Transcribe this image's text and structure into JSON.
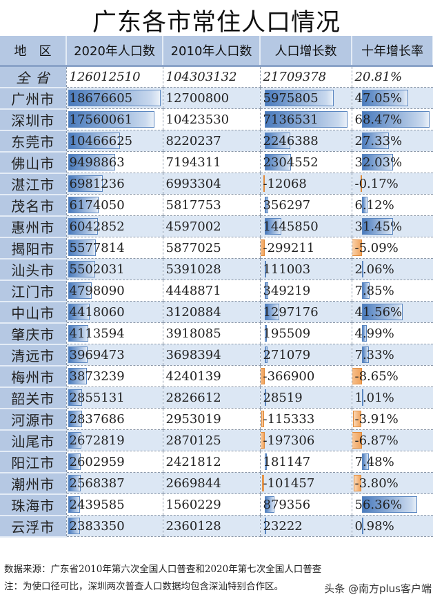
{
  "title": "广东各市常住人口情况",
  "headers": [
    "地　区",
    "2020年人口数",
    "2010年人口数",
    "人口增长数",
    "十年增长率"
  ],
  "total": {
    "region": "全 省",
    "pop2020": "126012510",
    "pop2010": "104303132",
    "growth": "21709378",
    "rate": "20.81%"
  },
  "rows": [
    {
      "region": "广州市",
      "pop2020": "18676605",
      "pop2010": "12700800",
      "growth": "5975805",
      "rate": "47.05%"
    },
    {
      "region": "深圳市",
      "pop2020": "17560061",
      "pop2010": "10423530",
      "growth": "7136531",
      "rate": "68.47%"
    },
    {
      "region": "东莞市",
      "pop2020": "10466625",
      "pop2010": "8220237",
      "growth": "2246388",
      "rate": "27.33%"
    },
    {
      "region": "佛山市",
      "pop2020": "9498863",
      "pop2010": "7194311",
      "growth": "2304552",
      "rate": "32.03%"
    },
    {
      "region": "湛江市",
      "pop2020": "6981236",
      "pop2010": "6993304",
      "growth": "-12068",
      "rate": "-0.17%"
    },
    {
      "region": "茂名市",
      "pop2020": "6174050",
      "pop2010": "5817753",
      "growth": "356297",
      "rate": "6.12%"
    },
    {
      "region": "惠州市",
      "pop2020": "6042852",
      "pop2010": "4597002",
      "growth": "1445850",
      "rate": "31.45%"
    },
    {
      "region": "揭阳市",
      "pop2020": "5577814",
      "pop2010": "5877025",
      "growth": "-299211",
      "rate": "-5.09%"
    },
    {
      "region": "汕头市",
      "pop2020": "5502031",
      "pop2010": "5391028",
      "growth": "111003",
      "rate": "2.06%"
    },
    {
      "region": "江门市",
      "pop2020": "4798090",
      "pop2010": "4448871",
      "growth": "349219",
      "rate": "7.85%"
    },
    {
      "region": "中山市",
      "pop2020": "4418060",
      "pop2010": "3120884",
      "growth": "1297176",
      "rate": "41.56%"
    },
    {
      "region": "肇庆市",
      "pop2020": "4113594",
      "pop2010": "3918085",
      "growth": "195509",
      "rate": "4.99%"
    },
    {
      "region": "清远市",
      "pop2020": "3969473",
      "pop2010": "3698394",
      "growth": "271079",
      "rate": "7.33%"
    },
    {
      "region": "梅州市",
      "pop2020": "3873239",
      "pop2010": "4240139",
      "growth": "-366900",
      "rate": "-8.65%"
    },
    {
      "region": "韶关市",
      "pop2020": "2855131",
      "pop2010": "2826612",
      "growth": "28519",
      "rate": "1.01%"
    },
    {
      "region": "河源市",
      "pop2020": "2837686",
      "pop2010": "2953019",
      "growth": "-115333",
      "rate": "-3.91%"
    },
    {
      "region": "汕尾市",
      "pop2020": "2672819",
      "pop2010": "2870125",
      "growth": "-197306",
      "rate": "-6.87%"
    },
    {
      "region": "阳江市",
      "pop2020": "2602959",
      "pop2010": "2421812",
      "growth": "181147",
      "rate": "7.48%"
    },
    {
      "region": "潮州市",
      "pop2020": "2568387",
      "pop2010": "2669844",
      "growth": "-101457",
      "rate": "-3.80%"
    },
    {
      "region": "珠海市",
      "pop2020": "2439585",
      "pop2010": "1560229",
      "growth": "879356",
      "rate": "56.36%"
    },
    {
      "region": "云浮市",
      "pop2020": "2383350",
      "pop2010": "2360128",
      "growth": "23222",
      "rate": "0.98%"
    }
  ],
  "footnotes": {
    "source": "数据来源：广东省2010年第六次全国人口普查和2020年第七次全国人口普查",
    "note": "注：为使口径可比，深圳两次普查人口数据均包含深汕特别合作区。"
  },
  "watermark": "头条 @南方plus客户端",
  "colors": {
    "header": "#b5c8e3",
    "row_alt": "#dce7f4",
    "bar_positive": "#4a7bbd",
    "bar_negative": "#f0a35c"
  }
}
